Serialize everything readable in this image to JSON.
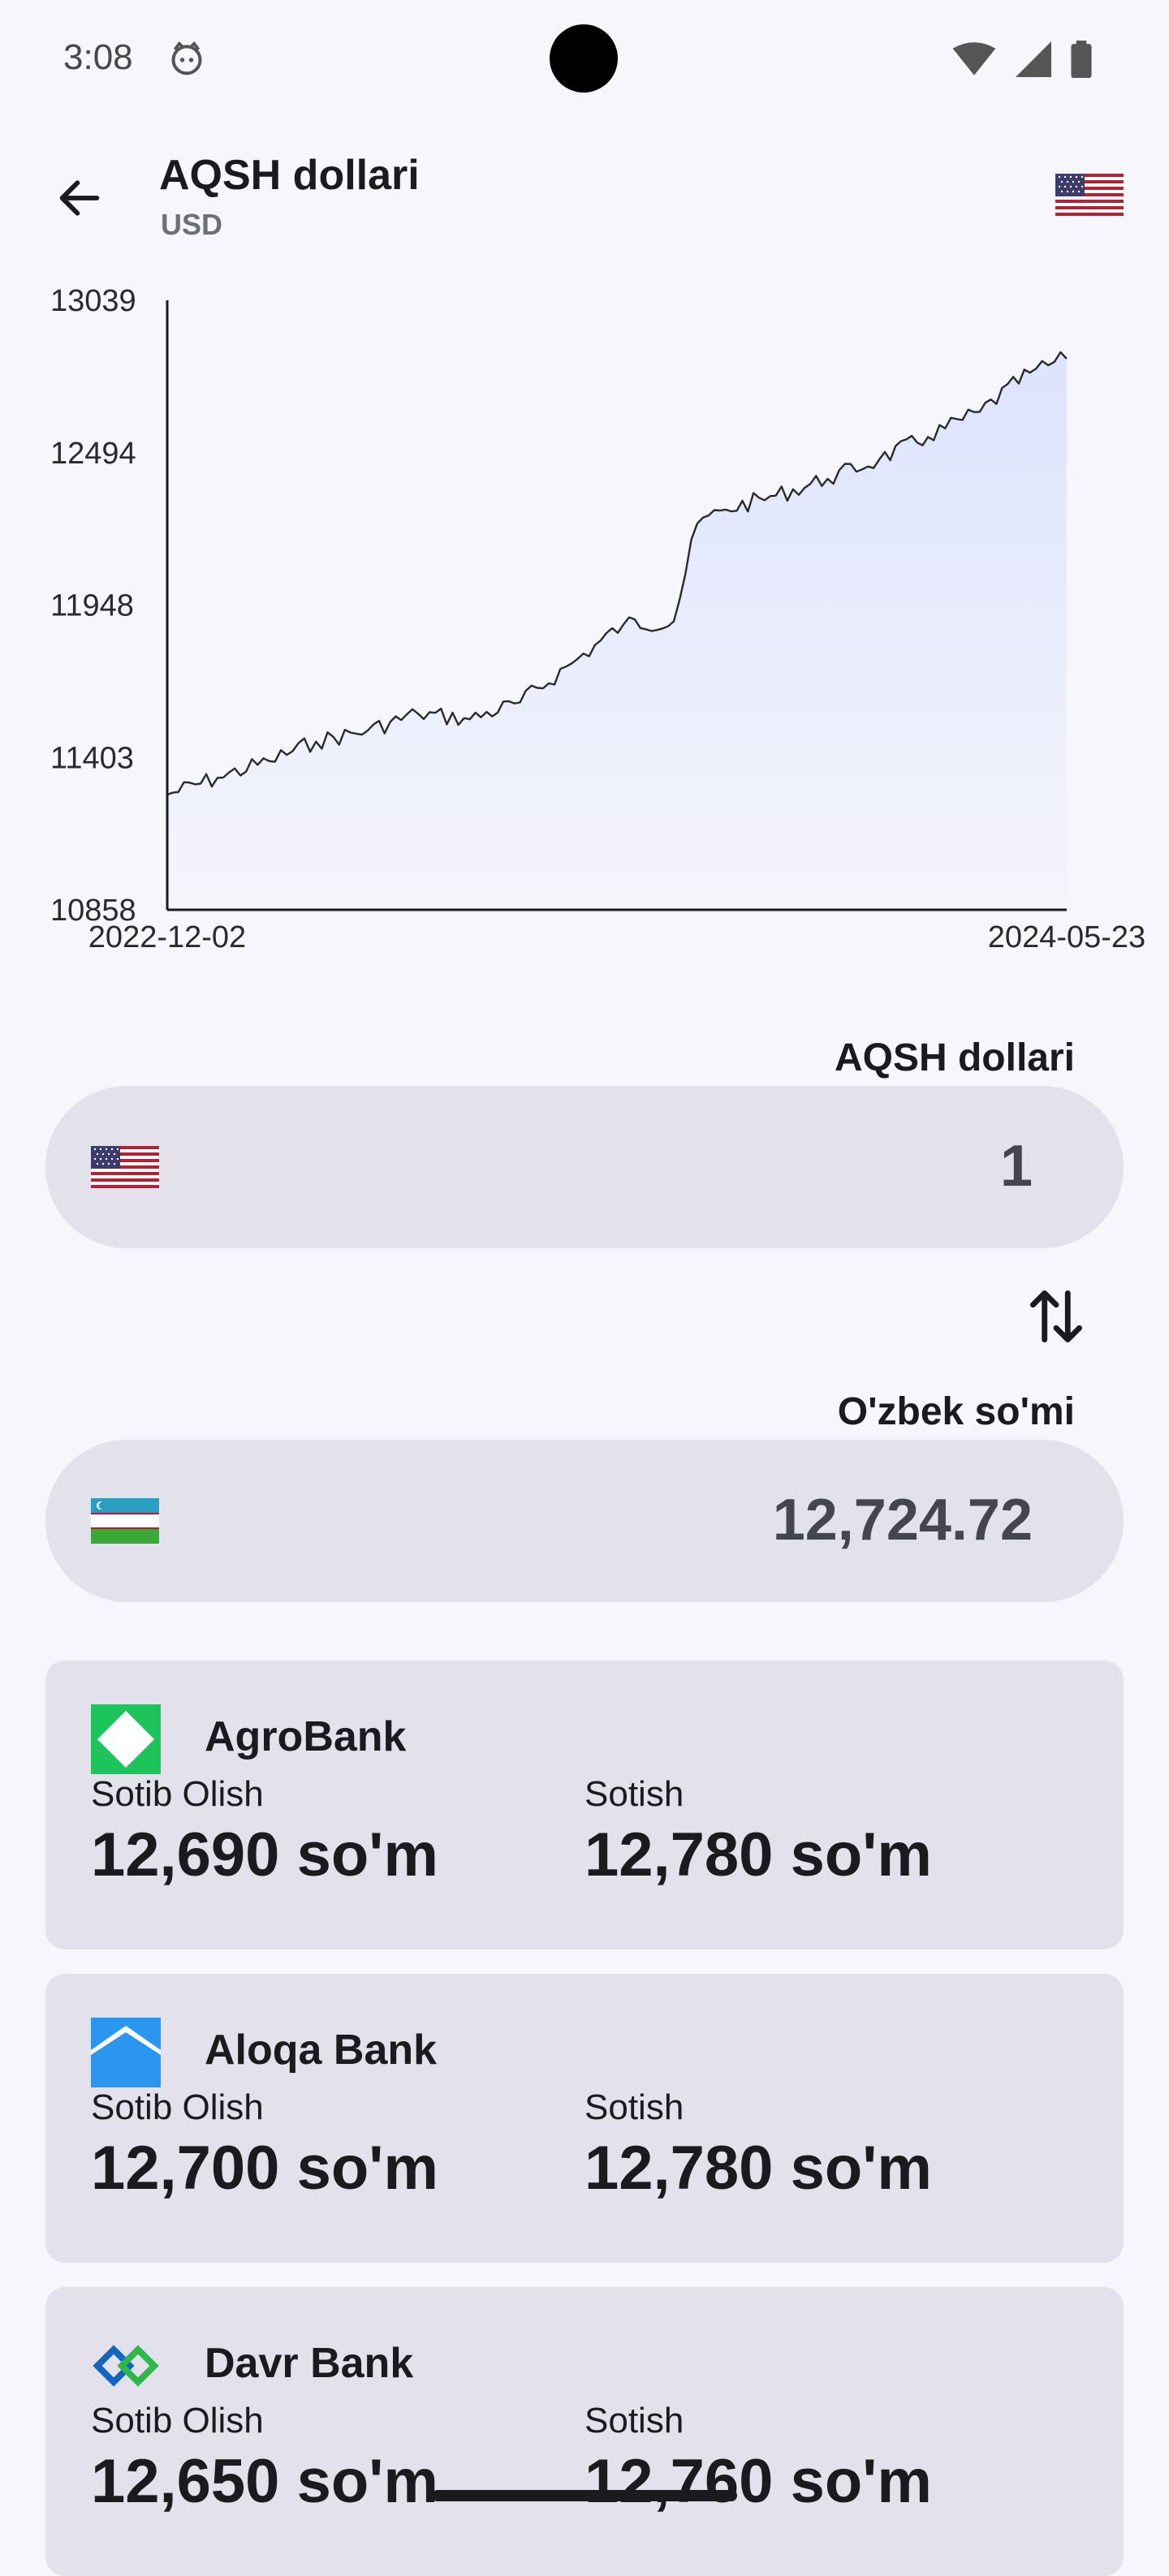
{
  "status_bar": {
    "time": "3:08",
    "icons": [
      "cat-face-icon",
      "wifi-icon",
      "signal-icon",
      "battery-icon"
    ]
  },
  "header": {
    "back_icon": "arrow-back-icon",
    "title": "AQSH dollari",
    "code": "USD",
    "flag_icon": "us-flag-icon"
  },
  "chart_data": {
    "type": "area",
    "y_ticks": [
      "13039",
      "12494",
      "11948",
      "11403",
      "10858"
    ],
    "ylim": [
      10858,
      13039
    ],
    "x_tick_labels": [
      "2022-12-02",
      "2024-05-23"
    ],
    "x": [
      "2022-12-02",
      "2023-01-01",
      "2023-02-01",
      "2023-03-01",
      "2023-04-01",
      "2023-05-01",
      "2023-06-01",
      "2023-07-01",
      "2023-08-01",
      "2023-09-01",
      "2023-10-01",
      "2023-10-15",
      "2023-11-01",
      "2023-12-01",
      "2024-01-01",
      "2024-02-01",
      "2024-03-01",
      "2024-04-01",
      "2024-05-01",
      "2024-05-23"
    ],
    "values": [
      11270,
      11330,
      11390,
      11460,
      11500,
      11560,
      11540,
      11600,
      11740,
      11880,
      11890,
      12240,
      12290,
      12340,
      12400,
      12470,
      12550,
      12640,
      12780,
      12830
    ],
    "line_color": "#2a2a2a",
    "fill_color": "#dfe5fd",
    "grid": false
  },
  "converter": {
    "from": {
      "label": "AQSH dollari",
      "value": "1",
      "flag_icon": "us-flag-icon"
    },
    "to": {
      "label": "O'zbek so'mi",
      "value": "12,724.72",
      "flag_icon": "uz-flag-icon"
    },
    "swap_icon": "swap-vertical-icon"
  },
  "banks": [
    {
      "name": "AgroBank",
      "logo_icon": "agrobank-logo-icon",
      "buy_label": "Sotib Olish",
      "buy": "12,690 so'm",
      "sell_label": "Sotish",
      "sell": "12,780 so'm"
    },
    {
      "name": "Aloqa Bank",
      "logo_icon": "aloqabank-logo-icon",
      "buy_label": "Sotib Olish",
      "buy": "12,700 so'm",
      "sell_label": "Sotish",
      "sell": "12,780 so'm"
    },
    {
      "name": "Davr Bank",
      "logo_icon": "davrbank-logo-icon",
      "buy_label": "Sotib Olish",
      "buy": "12,650 so'm",
      "sell_label": "Sotish",
      "sell": "12,760 so'm"
    }
  ]
}
